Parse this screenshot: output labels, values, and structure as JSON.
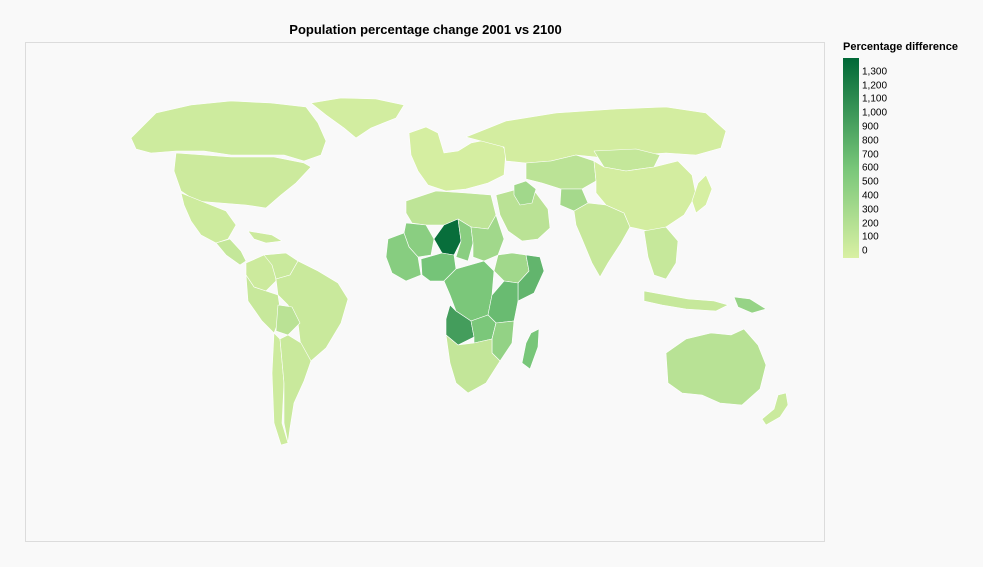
{
  "title": "Population percentage change 2001 vs 2100",
  "legend": {
    "title": "Percentage difference",
    "domain": [
      -50,
      1400
    ],
    "ticks": [
      {
        "value": 1300,
        "label": "1,300"
      },
      {
        "value": 1200,
        "label": "1,200"
      },
      {
        "value": 1100,
        "label": "1,100"
      },
      {
        "value": 1000,
        "label": "1,000"
      },
      {
        "value": 900,
        "label": "900"
      },
      {
        "value": 800,
        "label": "800"
      },
      {
        "value": 700,
        "label": "700"
      },
      {
        "value": 600,
        "label": "600"
      },
      {
        "value": 500,
        "label": "500"
      },
      {
        "value": 400,
        "label": "400"
      },
      {
        "value": 300,
        "label": "300"
      },
      {
        "value": 200,
        "label": "200"
      },
      {
        "value": 100,
        "label": "100"
      },
      {
        "value": 0,
        "label": "0"
      }
    ],
    "color_low": "#d9f0a3",
    "color_mid": "#78c679",
    "color_high": "#006837"
  },
  "chart_data": {
    "type": "heatmap",
    "projection": "world choropleth",
    "measure": "Percentage difference",
    "regions": [
      {
        "name": "Greenland",
        "value": 0
      },
      {
        "name": "Canada",
        "value": 30
      },
      {
        "name": "United States",
        "value": 40
      },
      {
        "name": "Mexico",
        "value": 30
      },
      {
        "name": "Central America",
        "value": 90
      },
      {
        "name": "Caribbean",
        "value": 40
      },
      {
        "name": "Colombia",
        "value": 40
      },
      {
        "name": "Venezuela",
        "value": 60
      },
      {
        "name": "Brazil",
        "value": 60
      },
      {
        "name": "Peru",
        "value": 70
      },
      {
        "name": "Bolivia",
        "value": 160
      },
      {
        "name": "Argentina",
        "value": 60
      },
      {
        "name": "Chile",
        "value": 30
      },
      {
        "name": "Europe",
        "value": -20
      },
      {
        "name": "Russia",
        "value": -10
      },
      {
        "name": "North Africa",
        "value": 130
      },
      {
        "name": "Mali",
        "value": 480
      },
      {
        "name": "Niger",
        "value": 1350
      },
      {
        "name": "Chad",
        "value": 480
      },
      {
        "name": "Sudan",
        "value": 330
      },
      {
        "name": "Nigeria",
        "value": 620
      },
      {
        "name": "West Africa",
        "value": 500
      },
      {
        "name": "Ethiopia",
        "value": 330
      },
      {
        "name": "Somalia",
        "value": 750
      },
      {
        "name": "DR Congo",
        "value": 580
      },
      {
        "name": "Angola",
        "value": 950
      },
      {
        "name": "Zambia",
        "value": 580
      },
      {
        "name": "Tanzania",
        "value": 700
      },
      {
        "name": "Mozambique",
        "value": 420
      },
      {
        "name": "Madagascar",
        "value": 600
      },
      {
        "name": "Southern Africa",
        "value": 100
      },
      {
        "name": "Middle East",
        "value": 160
      },
      {
        "name": "Iraq",
        "value": 330
      },
      {
        "name": "Central Asia",
        "value": 150
      },
      {
        "name": "Afghanistan",
        "value": 300
      },
      {
        "name": "India",
        "value": 70
      },
      {
        "name": "China",
        "value": -10
      },
      {
        "name": "Mongolia",
        "value": 90
      },
      {
        "name": "Southeast Asia",
        "value": 80
      },
      {
        "name": "Indonesia",
        "value": 80
      },
      {
        "name": "Japan",
        "value": -30
      },
      {
        "name": "Papua New Guinea",
        "value": 400
      },
      {
        "name": "Australia",
        "value": 170
      },
      {
        "name": "New Zealand",
        "value": 50
      }
    ]
  }
}
